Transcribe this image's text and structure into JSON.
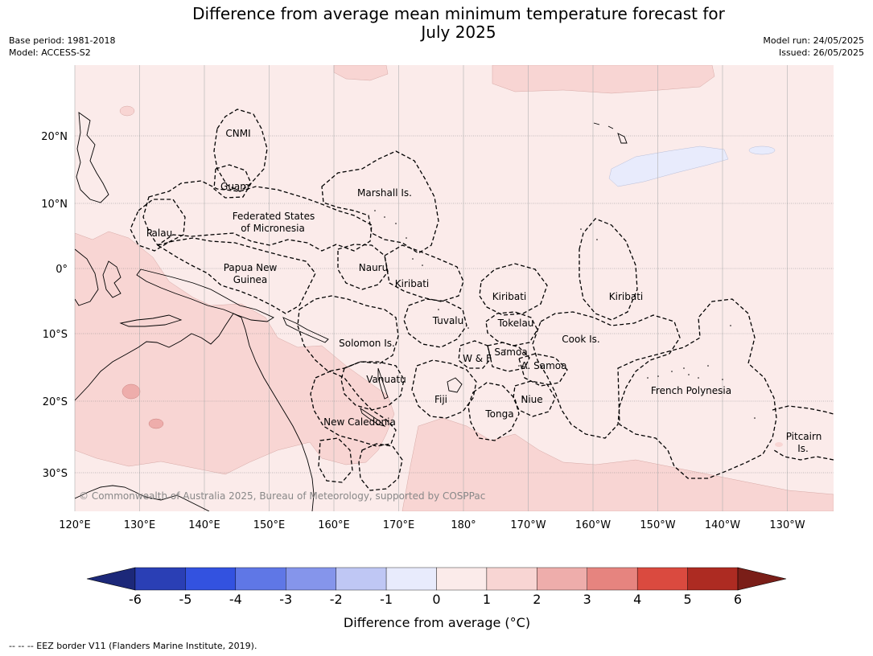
{
  "title_line1": "Difference from average mean minimum temperature forecast for",
  "title_line2": "July 2025",
  "meta_left": {
    "base_period": "Base period: 1981-2018",
    "model": "Model: ACCESS-S2"
  },
  "meta_right": {
    "model_run": "Model run: 24/05/2025",
    "issued": "Issued: 26/05/2025"
  },
  "latitude_labels": [
    "20°N",
    "10°N",
    "0°",
    "10°S",
    "20°S",
    "30°S"
  ],
  "longitude_labels": [
    "120°E",
    "130°E",
    "140°E",
    "150°E",
    "160°E",
    "170°E",
    "180°",
    "170°W",
    "160°W",
    "150°W",
    "140°W",
    "130°W"
  ],
  "region_labels": {
    "cnmi": "CNMI",
    "guam": "Guam",
    "marshall": "Marshall Is.",
    "fsm_1": "Federated States",
    "fsm_2": "of Micronesia",
    "palau": "Palau",
    "png_1": "Papua New",
    "png_2": "Guinea",
    "nauru": "Nauru",
    "kiribati_west": "Kiribati",
    "kiribati_central": "Kiribati",
    "kiribati_east": "Kiribati",
    "tuvalu": "Tuvalu",
    "tokelau": "Tokelau",
    "cook": "Cook Is.",
    "solomon": "Solomon Is.",
    "wf": "W & F",
    "samoa": "Samoa",
    "am_samoa": "A. Samoa",
    "vanuatu": "Vanuatu",
    "fiji": "Fiji",
    "niue": "Niue",
    "tonga": "Tonga",
    "french_polynesia": "French Polynesia",
    "new_caledonia": "New Caledonia",
    "pitcairn_1": "Pitcairn",
    "pitcairn_2": "Is."
  },
  "copyright": "© Commonwealth of Australia 2025, Bureau of Meteorology, supported by COSPPac",
  "colorbar": {
    "ticks": [
      "-6",
      "-5",
      "-4",
      "-3",
      "-2",
      "-1",
      "0",
      "1",
      "2",
      "3",
      "4",
      "5",
      "6"
    ],
    "colors": [
      "#1c2879",
      "#2a3fb5",
      "#3352e0",
      "#5f77e6",
      "#8595eb",
      "#bfc7f4",
      "#e8ebfc",
      "#fbebea",
      "#f8d5d3",
      "#eeadab",
      "#e6847f",
      "#da4a3f",
      "#ad2b22",
      "#7a1e18"
    ],
    "label": "Difference from average (°C)"
  },
  "footnote": "--  --  -- EEZ border V11 (Flanders Marine Institute, 2019)."
}
